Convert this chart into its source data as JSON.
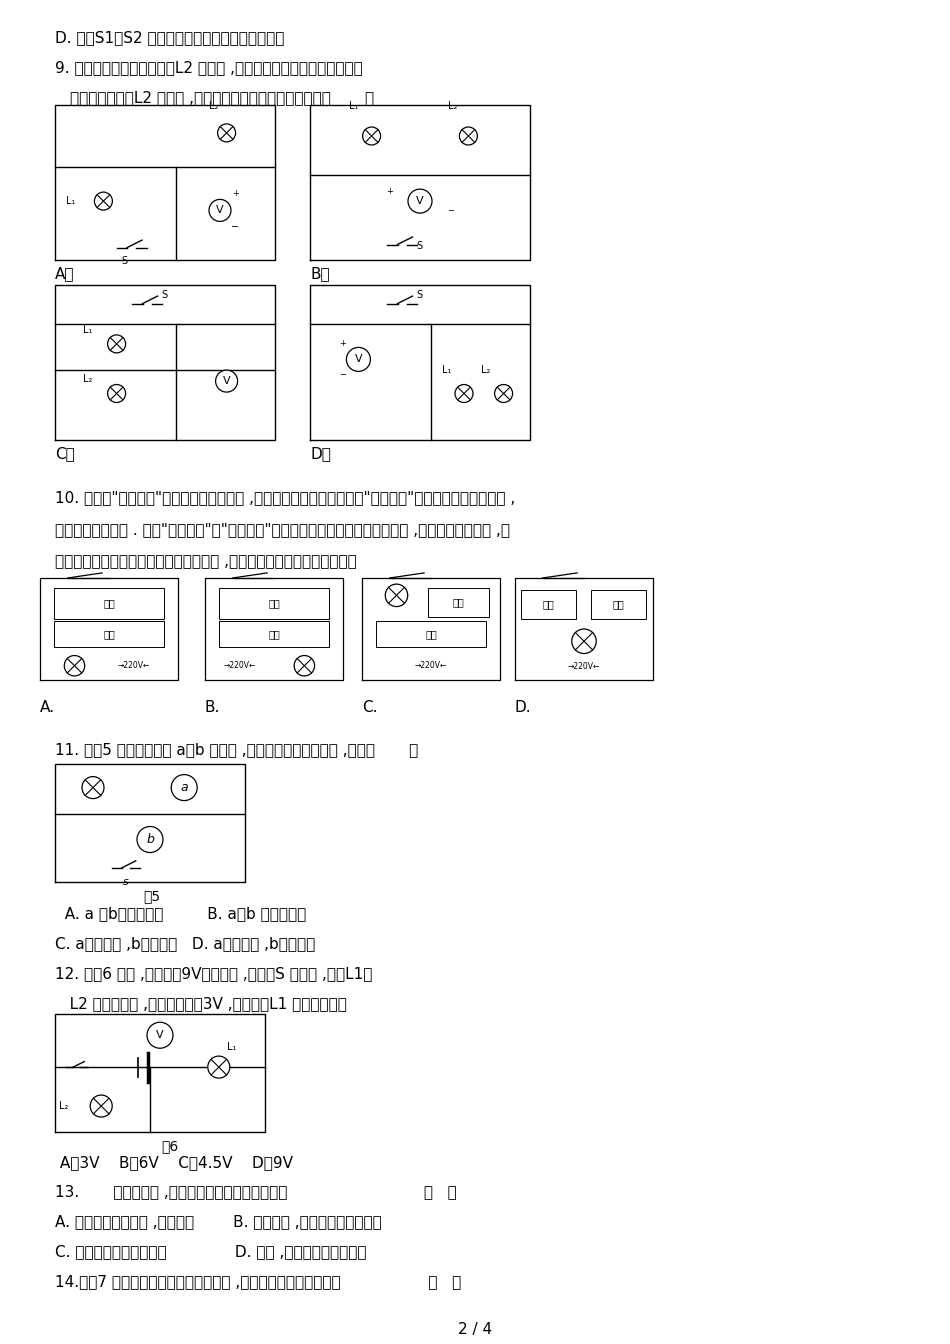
{
  "bg_color": "#ffffff",
  "page_width": 9.5,
  "page_height": 13.44,
  "dpi": 100,
  "q10_text1": "10. 有一种\"光控开关\"能在天黑时自动闭合 ,天亮时自动断开；而另一种\"声控开关\"能在有声音时自动闭合 ,",
  "q10_text2": "无声音时自动断开 . 利用\"光控开关\"和\"声控开关\"来控制居民楼里楼道灯可以节约电 ,要求灯白天不会亮 ,天",
  "q10_text3": "黑后楼道有人走动发出声音时灯会自动亮 ,以下如下图的电路图中合理的是",
  "q11_text": "11. 如图5 所示的电路中 a、b 是电表 ,闭合开关要使电灯发光 ,那么〔       〕",
  "q11_ans1": "  A. a 、b都是电流表         B. a、b 都是电压表",
  "q11_ans2": "C. a是电流表 ,b是电压表   D. a是电压表 ,b是电流表",
  "q12_text1": "12. 如图6 所示 ,电源电压9V保持不变 ,当开关S 闭合时 ,灯泡L1、",
  "q12_text2": "   L2 均正常发光 ,电压表示数为3V ,那么灯泡L1 两端的电压是",
  "q12_ans": " A．3V    B．6V    C．4.5V    D．9V",
  "q13_text": "13.       以下现象中 ,利用做功使物体内能增加的是                            〔   〕",
  "q13_ansA": "A. 木工用锯锯木条时 ,锯条发烫        B. 烧开水时 ,壶盖被水蒸气顶起来",
  "q13_ansC": "C. 铁块放在炉火中烧红了              D. 冬天 ,人们在太阳光下取暖",
  "q14_text": "14.如图7 是简化了的玩具警车的电路图 ,以下说法中正确的选项是                  〔   〕",
  "page_num": "2 / 4"
}
